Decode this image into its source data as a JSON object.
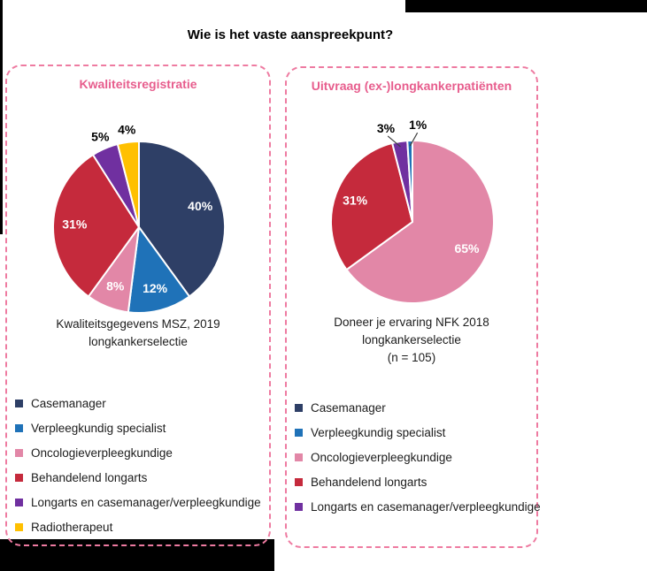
{
  "page_title": "Wie is het vaste aanspreekpunt?",
  "panels": [
    {
      "title": "Kwaliteitsregistratie",
      "caption": [
        "Kwaliteitsgegevens MSZ, 2019",
        "longkankerselectie"
      ],
      "legend": [
        {
          "label": "Casemanager",
          "color": "#2e3f66"
        },
        {
          "label": "Verpleegkundig specialist",
          "color": "#1f72b8"
        },
        {
          "label": "Oncologieverpleegkundige",
          "color": "#e287a7"
        },
        {
          "label": "Behandelend longarts",
          "color": "#c52a3c"
        },
        {
          "label": "Longarts en casemanager/verpleegkundige",
          "color": "#7030a0"
        },
        {
          "label": "Radiotherapeut",
          "color": "#ffc000"
        }
      ]
    },
    {
      "title": "Uitvraag (ex-)longkankerpatiënten",
      "caption": [
        "Doneer je ervaring NFK 2018",
        "longkankerselectie",
        "(n = 105)"
      ],
      "legend": [
        {
          "label": "Casemanager",
          "color": "#2e3f66"
        },
        {
          "label": "Verpleegkundig specialist",
          "color": "#1f72b8"
        },
        {
          "label": "Oncologieverpleegkundige",
          "color": "#e287a7"
        },
        {
          "label": "Behandelend longarts",
          "color": "#c52a3c"
        },
        {
          "label": "Longarts en casemanager/verpleegkundige",
          "color": "#7030a0"
        }
      ]
    }
  ],
  "chart_data": [
    {
      "type": "pie",
      "title": "Kwaliteitsregistratie",
      "caption": "Kwaliteitsgegevens MSZ, 2019 longkankerselectie",
      "start_angle_deg": 0,
      "direction": "clockwise",
      "legend_position": "bottom-left",
      "slices": [
        {
          "label": "Casemanager",
          "value": 40,
          "color": "#2e3f66",
          "label_inside": true
        },
        {
          "label": "Verpleegkundig specialist",
          "value": 12,
          "color": "#1f72b8",
          "label_inside": true
        },
        {
          "label": "Oncologieverpleegkundige",
          "value": 8,
          "color": "#e287a7",
          "label_inside": true
        },
        {
          "label": "Behandelend longarts",
          "value": 31,
          "color": "#c52a3c",
          "label_inside": true
        },
        {
          "label": "Longarts en casemanager/verpleegkundige",
          "value": 5,
          "color": "#7030a0",
          "label_inside": false
        },
        {
          "label": "Radiotherapeut",
          "value": 4,
          "color": "#ffc000",
          "label_inside": false
        }
      ]
    },
    {
      "type": "pie",
      "title": "Uitvraag (ex-)longkankerpatiënten",
      "caption": "Doneer je ervaring NFK 2018 longkankerselectie (n = 105)",
      "start_angle_deg": 0,
      "direction": "clockwise",
      "legend_position": "bottom-left",
      "slices": [
        {
          "label": "Oncologieverpleegkundige",
          "value": 65,
          "color": "#e287a7",
          "label_inside": true
        },
        {
          "label": "Behandelend longarts",
          "value": 31,
          "color": "#c52a3c",
          "label_inside": true
        },
        {
          "label": "Longarts en casemanager/verpleegkundige",
          "value": 3,
          "color": "#7030a0",
          "label_inside": false,
          "leader": true,
          "label_angle_offset_deg": -7
        },
        {
          "label": "Verpleegkundig specialist",
          "value": 1,
          "color": "#1f72b8",
          "label_inside": false,
          "leader": true,
          "label_angle_offset_deg": 5
        }
      ]
    }
  ]
}
